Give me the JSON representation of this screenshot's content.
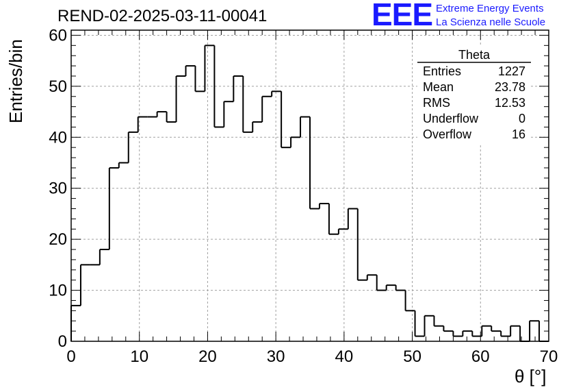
{
  "run_title": "REND-02-2025-03-11-00041",
  "logo": {
    "mark": "EEE",
    "line1": "Extreme Energy Events",
    "line2": "La Scienza nelle Scuole",
    "color": "#1a1aff"
  },
  "stats": {
    "name": "Theta",
    "rows": [
      {
        "label": "Entries",
        "value": "1227"
      },
      {
        "label": "Mean",
        "value": "23.78"
      },
      {
        "label": "RMS",
        "value": "12.53"
      },
      {
        "label": "Underflow",
        "value": "0"
      },
      {
        "label": "Overflow",
        "value": "16"
      }
    ]
  },
  "chart_data": {
    "type": "histogram",
    "title": "REND-02-2025-03-11-00041",
    "xlabel": "θ [°]",
    "ylabel": "Entries/bin",
    "xlim": [
      0,
      70
    ],
    "ylim": [
      0,
      61
    ],
    "bin_width": 1.4,
    "x_ticks": [
      0,
      10,
      20,
      30,
      40,
      50,
      60,
      70
    ],
    "y_ticks": [
      0,
      10,
      20,
      30,
      40,
      50,
      60
    ],
    "grid": true,
    "values": [
      7,
      15,
      15,
      18,
      34,
      35,
      41,
      44,
      44,
      45,
      43,
      52,
      54,
      49,
      58,
      42,
      47,
      52,
      41,
      43,
      48,
      49,
      38,
      40,
      44,
      26,
      27,
      21,
      22,
      26,
      12,
      13,
      10,
      11,
      10,
      6,
      1,
      5,
      3,
      2,
      1,
      2,
      1,
      3,
      2,
      1,
      3,
      0,
      4,
      0
    ]
  }
}
